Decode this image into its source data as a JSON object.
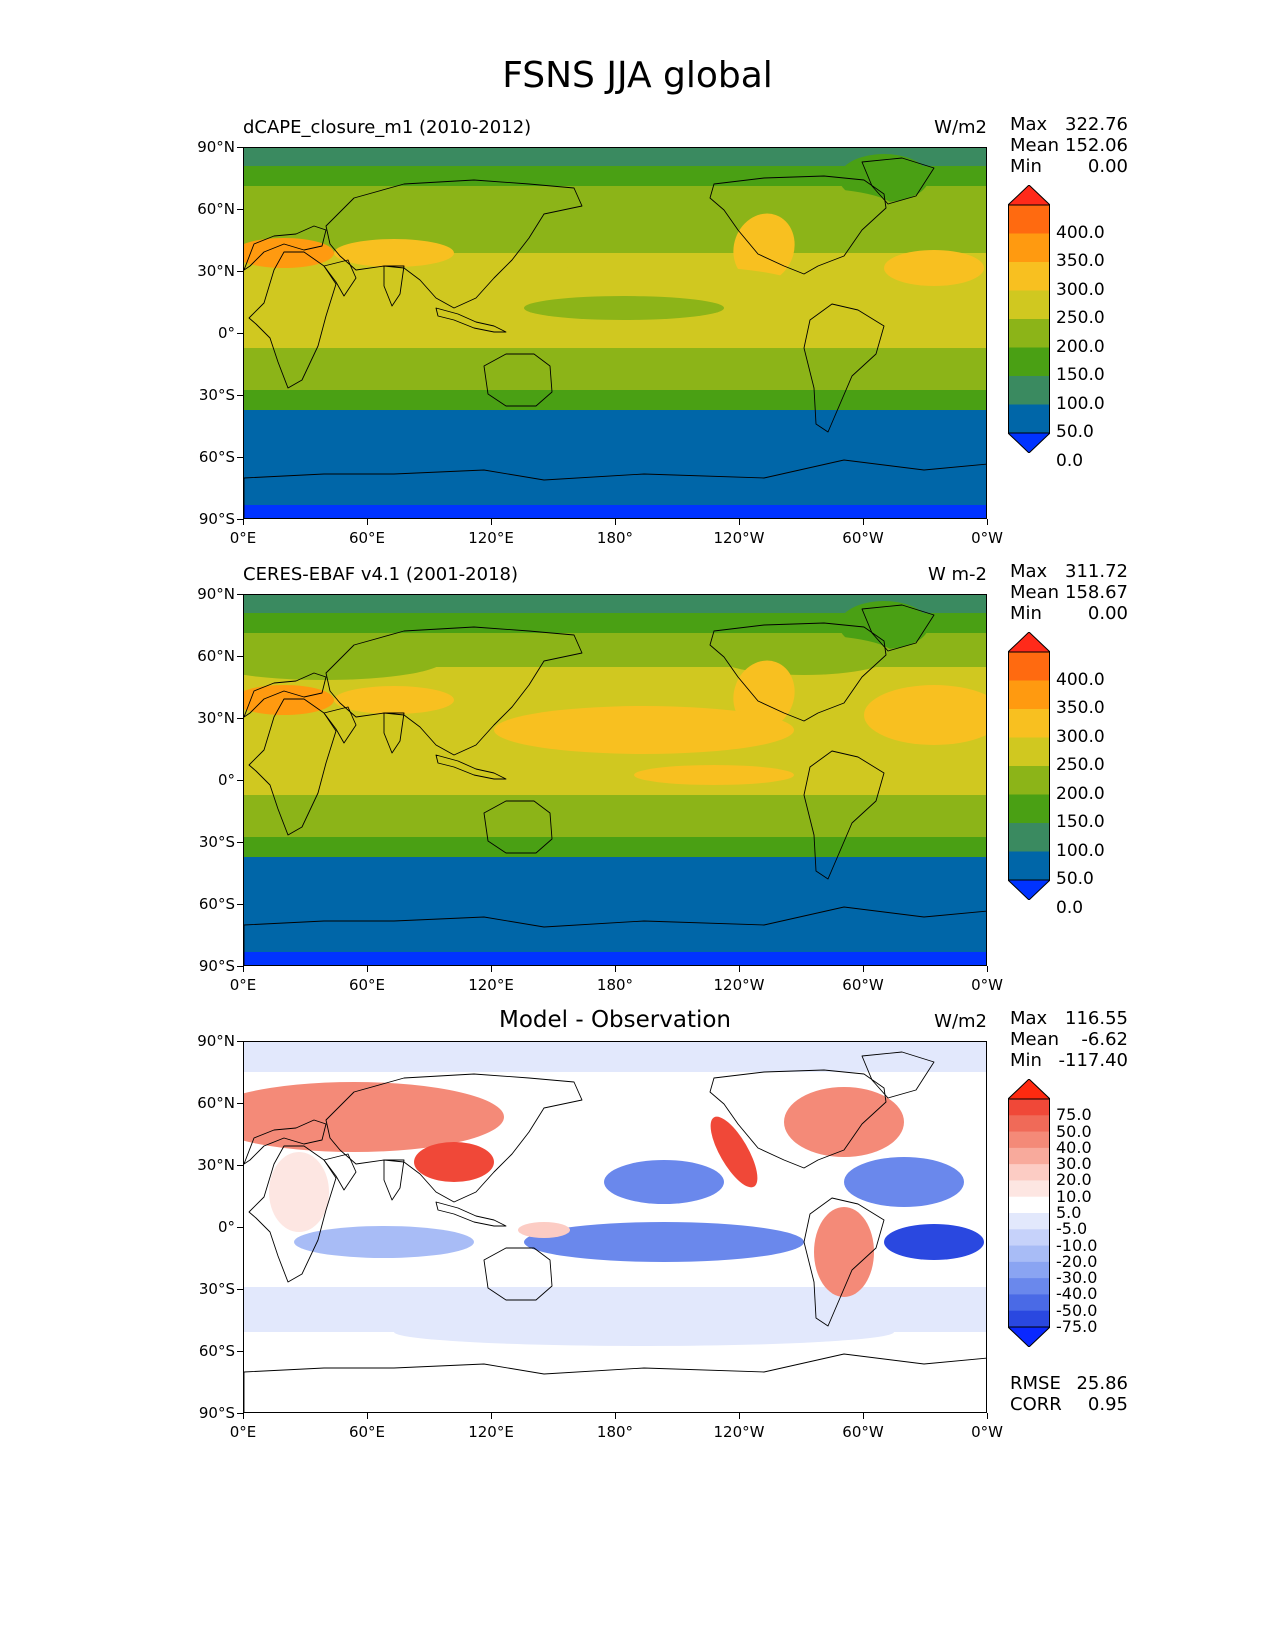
{
  "figure_title": "FSNS JJA global",
  "panels": [
    {
      "title": "dCAPE_closure_m1 (2010-2012)",
      "units": "W/m2",
      "stats": {
        "max_label": "Max",
        "max": "322.76",
        "mean_label": "Mean",
        "mean": "152.06",
        "min_label": "Min",
        "min": "0.00"
      }
    },
    {
      "title": "CERES-EBAF v4.1 (2001-2018)",
      "units": "W m-2",
      "stats": {
        "max_label": "Max",
        "max": "311.72",
        "mean_label": "Mean",
        "mean": "158.67",
        "min_label": "Min",
        "min": "0.00"
      }
    },
    {
      "title": "Model - Observation",
      "units": "W/m2",
      "stats": {
        "max_label": "Max",
        "max": "116.55",
        "mean_label": "Mean",
        "mean": "-6.62",
        "min_label": "Min",
        "min": "-117.40"
      },
      "extra": {
        "rmse_label": "RMSE",
        "rmse": "25.86",
        "corr_label": "CORR",
        "corr": "0.95"
      }
    }
  ],
  "y_ticks": [
    "90°N",
    "60°N",
    "30°N",
    "0°",
    "30°S",
    "60°S",
    "90°S"
  ],
  "x_ticks": [
    "0°E",
    "60°E",
    "120°E",
    "180°",
    "120°W",
    "60°W",
    "0°W"
  ],
  "colorbar_main": {
    "labels": [
      "400.0",
      "350.0",
      "300.0",
      "250.0",
      "200.0",
      "150.0",
      "100.0",
      "50.0",
      "0.0"
    ],
    "colors": [
      "#ff2a1a",
      "#ff6a10",
      "#ff9a10",
      "#f8c020",
      "#d0c820",
      "#8cb418",
      "#4aa014",
      "#3a8a60",
      "#0066a8",
      "#0033ff"
    ]
  },
  "colorbar_diff": {
    "labels": [
      "75.0",
      "50.0",
      "40.0",
      "30.0",
      "20.0",
      "10.0",
      "5.0",
      "-5.0",
      "-10.0",
      "-20.0",
      "-30.0",
      "-40.0",
      "-50.0",
      "-75.0"
    ],
    "colors": [
      "#ff2a10",
      "#f04838",
      "#f06a58",
      "#f48a78",
      "#f8aa9c",
      "#fcccc4",
      "#fde6e2",
      "#ffffff",
      "#e2e8fc",
      "#c6d2fa",
      "#a8bcf6",
      "#8aa4f2",
      "#6a88ec",
      "#4a6ae6",
      "#2a48e0",
      "#0a28ff"
    ]
  },
  "chart_data": [
    {
      "type": "heatmap",
      "title": "dCAPE_closure_m1 (2010-2012)",
      "units": "W/m2",
      "xlim": [
        0,
        360
      ],
      "ylim": [
        -90,
        90
      ],
      "zonal_mean_profile": [
        {
          "lat": 90,
          "value": 105
        },
        {
          "lat": 75,
          "value": 150
        },
        {
          "lat": 60,
          "value": 175
        },
        {
          "lat": 45,
          "value": 215
        },
        {
          "lat": 30,
          "value": 235
        },
        {
          "lat": 15,
          "value": 220
        },
        {
          "lat": 0,
          "value": 205
        },
        {
          "lat": -15,
          "value": 175
        },
        {
          "lat": -30,
          "value": 135
        },
        {
          "lat": -45,
          "value": 75
        },
        {
          "lat": -60,
          "value": 55
        },
        {
          "lat": -75,
          "value": 50
        },
        {
          "lat": -90,
          "value": 0
        }
      ],
      "stats": {
        "max": 322.76,
        "mean": 152.06,
        "min": 0.0
      }
    },
    {
      "type": "heatmap",
      "title": "CERES-EBAF v4.1 (2001-2018)",
      "units": "W m-2",
      "xlim": [
        0,
        360
      ],
      "ylim": [
        -90,
        90
      ],
      "zonal_mean_profile": [
        {
          "lat": 90,
          "value": 105
        },
        {
          "lat": 75,
          "value": 150
        },
        {
          "lat": 60,
          "value": 180
        },
        {
          "lat": 45,
          "value": 215
        },
        {
          "lat": 30,
          "value": 250
        },
        {
          "lat": 15,
          "value": 235
        },
        {
          "lat": 0,
          "value": 215
        },
        {
          "lat": -15,
          "value": 200
        },
        {
          "lat": -30,
          "value": 140
        },
        {
          "lat": -45,
          "value": 80
        },
        {
          "lat": -60,
          "value": 55
        },
        {
          "lat": -75,
          "value": 50
        },
        {
          "lat": -90,
          "value": 0
        }
      ],
      "stats": {
        "max": 311.72,
        "mean": 158.67,
        "min": 0.0
      }
    },
    {
      "type": "heatmap",
      "title": "Model - Observation",
      "units": "W/m2",
      "xlim": [
        0,
        360
      ],
      "ylim": [
        -90,
        90
      ],
      "stats": {
        "max": 116.55,
        "mean": -6.62,
        "min": -117.4,
        "rmse": 25.86,
        "corr": 0.95
      }
    }
  ]
}
